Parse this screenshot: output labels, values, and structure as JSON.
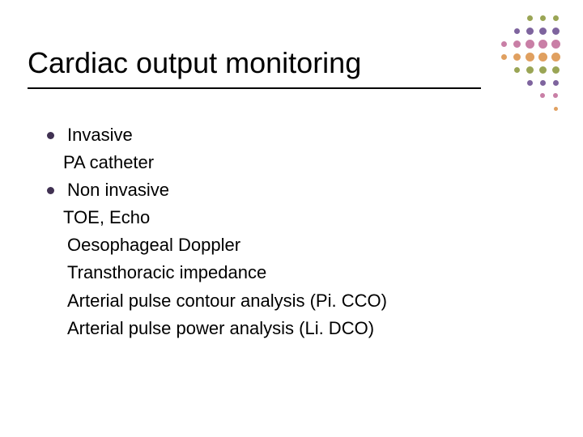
{
  "title": "Cardiac output monitoring",
  "bullet_color": "#403152",
  "lines": [
    {
      "kind": "bullet",
      "text": "Invasive"
    },
    {
      "kind": "sub",
      "text": "PA catheter"
    },
    {
      "kind": "bullet",
      "text": "Non invasive"
    },
    {
      "kind": "sub",
      "text": "TOE, Echo"
    },
    {
      "kind": "subsub",
      "text": "Oesophageal Doppler"
    },
    {
      "kind": "subsub",
      "text": "Transthoracic impedance"
    },
    {
      "kind": "subsub",
      "text": "Arterial pulse contour analysis (Pi. CCO)"
    },
    {
      "kind": "subsub",
      "text": "Arterial pulse power analysis (Li. DCO)"
    }
  ],
  "deco": {
    "colors": {
      "olive": "#9aa555",
      "purple": "#7e649e",
      "pink": "#c97fa6",
      "orange": "#e0a060"
    },
    "dots": [
      {
        "r": 0,
        "c": 3,
        "size": 7,
        "color": "olive"
      },
      {
        "r": 0,
        "c": 4,
        "size": 7,
        "color": "olive"
      },
      {
        "r": 0,
        "c": 5,
        "size": 7,
        "color": "olive"
      },
      {
        "r": 1,
        "c": 2,
        "size": 7,
        "color": "purple"
      },
      {
        "r": 1,
        "c": 3,
        "size": 9,
        "color": "purple"
      },
      {
        "r": 1,
        "c": 4,
        "size": 9,
        "color": "purple"
      },
      {
        "r": 1,
        "c": 5,
        "size": 9,
        "color": "purple"
      },
      {
        "r": 2,
        "c": 1,
        "size": 7,
        "color": "pink"
      },
      {
        "r": 2,
        "c": 2,
        "size": 9,
        "color": "pink"
      },
      {
        "r": 2,
        "c": 3,
        "size": 11,
        "color": "pink"
      },
      {
        "r": 2,
        "c": 4,
        "size": 11,
        "color": "pink"
      },
      {
        "r": 2,
        "c": 5,
        "size": 11,
        "color": "pink"
      },
      {
        "r": 3,
        "c": 1,
        "size": 7,
        "color": "orange"
      },
      {
        "r": 3,
        "c": 2,
        "size": 9,
        "color": "orange"
      },
      {
        "r": 3,
        "c": 3,
        "size": 11,
        "color": "orange"
      },
      {
        "r": 3,
        "c": 4,
        "size": 11,
        "color": "orange"
      },
      {
        "r": 3,
        "c": 5,
        "size": 11,
        "color": "orange"
      },
      {
        "r": 4,
        "c": 2,
        "size": 7,
        "color": "olive"
      },
      {
        "r": 4,
        "c": 3,
        "size": 9,
        "color": "olive"
      },
      {
        "r": 4,
        "c": 4,
        "size": 9,
        "color": "olive"
      },
      {
        "r": 4,
        "c": 5,
        "size": 9,
        "color": "olive"
      },
      {
        "r": 5,
        "c": 3,
        "size": 7,
        "color": "purple"
      },
      {
        "r": 5,
        "c": 4,
        "size": 7,
        "color": "purple"
      },
      {
        "r": 5,
        "c": 5,
        "size": 7,
        "color": "purple"
      },
      {
        "r": 6,
        "c": 4,
        "size": 6,
        "color": "pink"
      },
      {
        "r": 6,
        "c": 5,
        "size": 6,
        "color": "pink"
      },
      {
        "r": 7,
        "c": 5,
        "size": 5,
        "color": "orange"
      }
    ],
    "col_step": 16,
    "row_step": 16
  }
}
